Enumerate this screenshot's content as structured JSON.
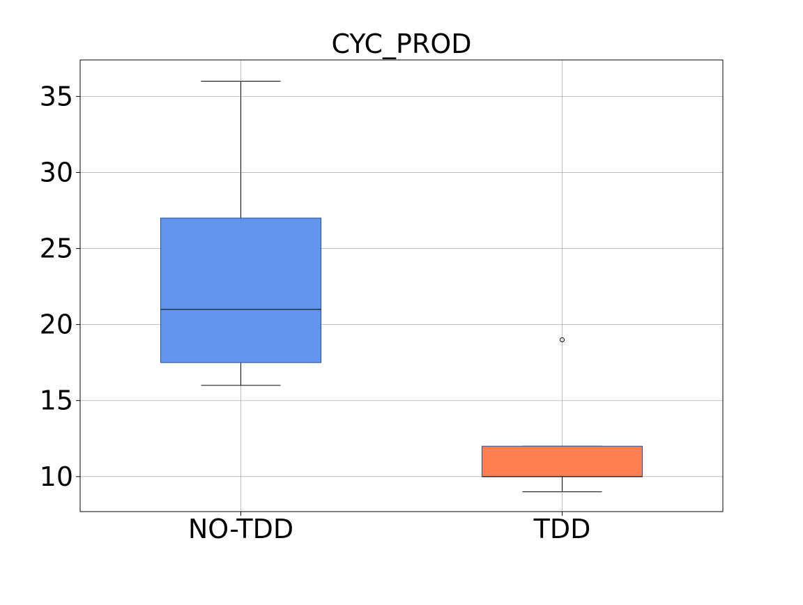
{
  "chart_data": {
    "type": "box",
    "title": "CYC_PROD",
    "xlabel": "",
    "ylabel": "",
    "categories": [
      "NO-TDD",
      "TDD"
    ],
    "ylim": [
      7.7,
      37.4
    ],
    "yticks": [
      10,
      15,
      20,
      25,
      30,
      35
    ],
    "grid": true,
    "boxes": [
      {
        "category": "NO-TDD",
        "whisker_low": 16,
        "q1": 17.5,
        "median": 21,
        "q3": 27,
        "whisker_high": 36,
        "outliers": [],
        "color": "#6495ED"
      },
      {
        "category": "TDD",
        "whisker_low": 9,
        "q1": 10,
        "median": 10,
        "q3": 12,
        "whisker_high": 12,
        "outliers": [
          19
        ],
        "color": "#FF7F50"
      }
    ]
  }
}
